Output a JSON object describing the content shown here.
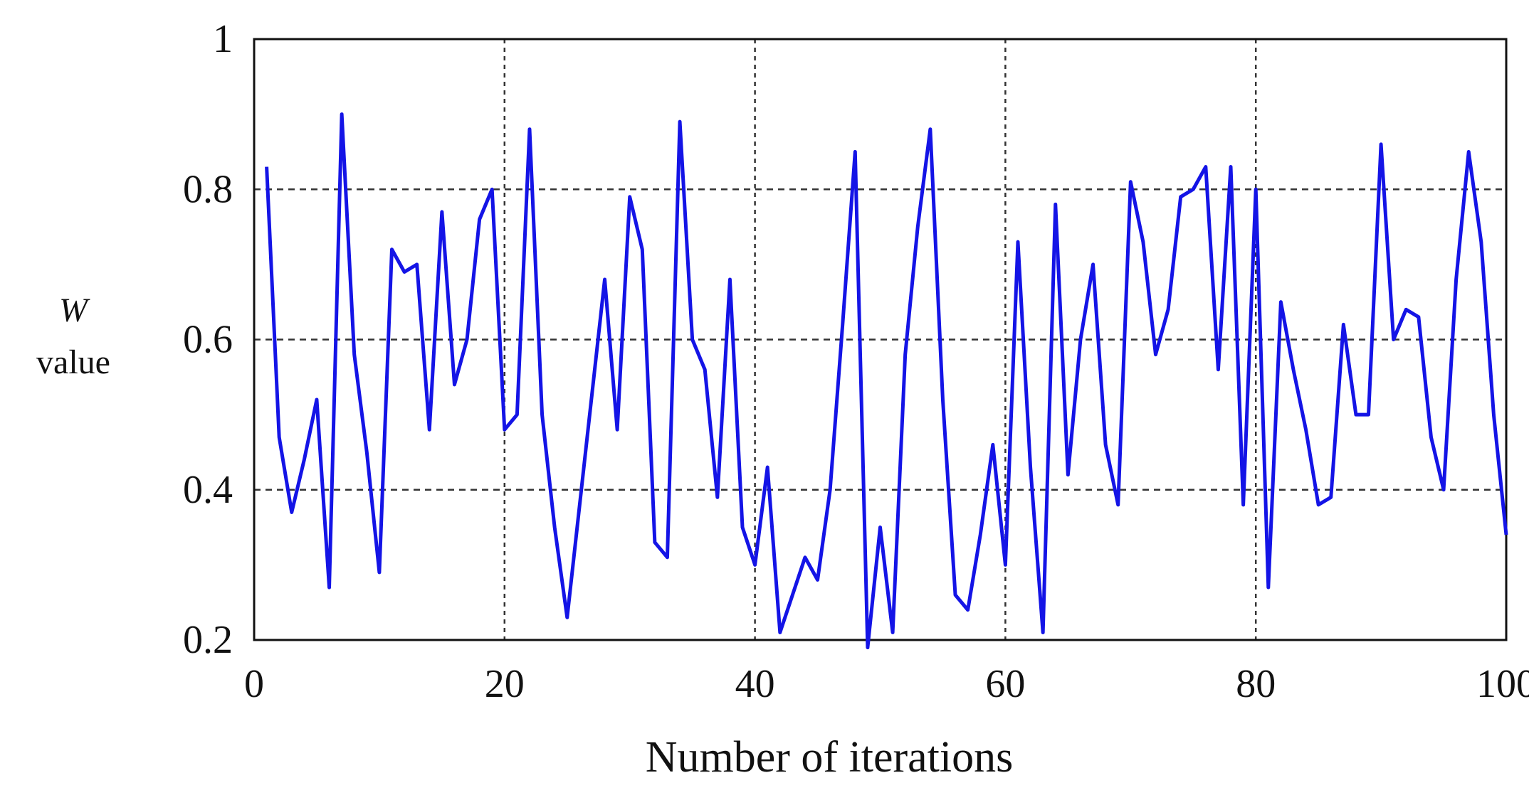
{
  "chart_data": {
    "type": "line",
    "xlabel": "Number of iterations",
    "ylabel": [
      "W",
      "value"
    ],
    "x": [
      1,
      2,
      3,
      4,
      5,
      6,
      7,
      8,
      9,
      10,
      11,
      12,
      13,
      14,
      15,
      16,
      17,
      18,
      19,
      20,
      21,
      22,
      23,
      24,
      25,
      26,
      27,
      28,
      29,
      30,
      31,
      32,
      33,
      34,
      35,
      36,
      37,
      38,
      39,
      40,
      41,
      42,
      43,
      44,
      45,
      46,
      47,
      48,
      49,
      50,
      51,
      52,
      53,
      54,
      55,
      56,
      57,
      58,
      59,
      60,
      61,
      62,
      63,
      64,
      65,
      66,
      67,
      68,
      69,
      70,
      71,
      72,
      73,
      74,
      75,
      76,
      77,
      78,
      79,
      80,
      81,
      82,
      83,
      84,
      85,
      86,
      87,
      88,
      89,
      90,
      91,
      92,
      93,
      94,
      95,
      96,
      97,
      98,
      99,
      100
    ],
    "series": [
      {
        "name": "W value",
        "color": "#1414e6",
        "values": [
          0.83,
          0.47,
          0.37,
          0.44,
          0.52,
          0.27,
          0.9,
          0.58,
          0.45,
          0.29,
          0.72,
          0.69,
          0.7,
          0.48,
          0.77,
          0.54,
          0.6,
          0.76,
          0.8,
          0.48,
          0.5,
          0.88,
          0.5,
          0.35,
          0.23,
          0.38,
          0.53,
          0.68,
          0.48,
          0.79,
          0.72,
          0.33,
          0.31,
          0.89,
          0.6,
          0.56,
          0.39,
          0.68,
          0.35,
          0.3,
          0.43,
          0.21,
          0.26,
          0.31,
          0.28,
          0.4,
          0.62,
          0.85,
          0.19,
          0.35,
          0.21,
          0.58,
          0.75,
          0.88,
          0.52,
          0.26,
          0.24,
          0.34,
          0.46,
          0.3,
          0.73,
          0.43,
          0.21,
          0.78,
          0.42,
          0.6,
          0.7,
          0.46,
          0.38,
          0.81,
          0.73,
          0.58,
          0.64,
          0.79,
          0.8,
          0.83,
          0.56,
          0.83,
          0.38,
          0.8,
          0.27,
          0.65,
          0.56,
          0.48,
          0.38,
          0.39,
          0.62,
          0.5,
          0.5,
          0.86,
          0.6,
          0.64,
          0.63,
          0.47,
          0.4,
          0.68,
          0.85,
          0.73,
          0.5,
          0.34
        ]
      }
    ],
    "xlim": [
      0,
      100
    ],
    "ylim": [
      0.2,
      1
    ],
    "xticks": [
      0,
      20,
      40,
      60,
      80,
      100
    ],
    "yticks": [
      0.2,
      0.4,
      0.6,
      0.8,
      1
    ],
    "grid": true
  }
}
